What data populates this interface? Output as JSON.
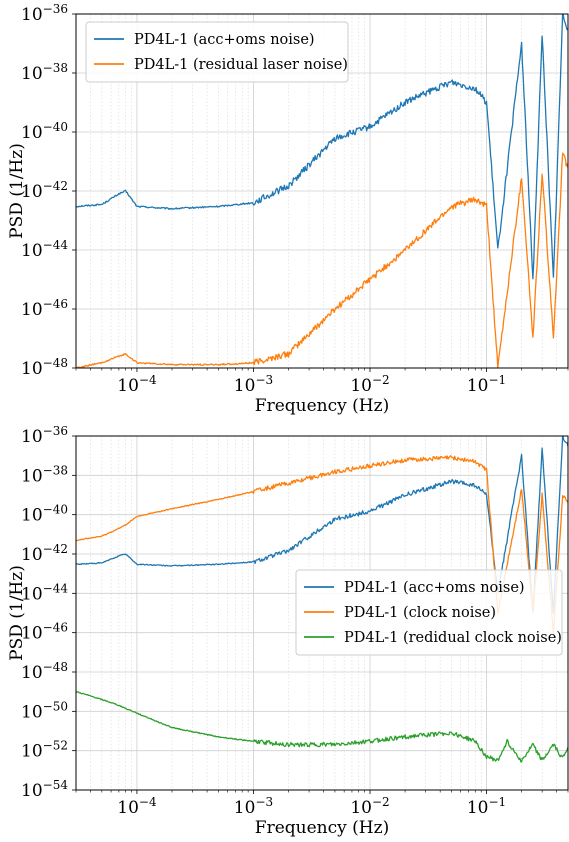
{
  "chart_data": [
    {
      "type": "line",
      "xscale": "log",
      "yscale": "log",
      "xlim": [
        3e-05,
        0.5
      ],
      "ylim": [
        1e-48,
        1e-36
      ],
      "xlabel": "Frequency (Hz)",
      "ylabel": "PSD (1/Hz)",
      "x_ticks": [
        "10^-4",
        "10^-3",
        "10^-2",
        "10^-1"
      ],
      "y_ticks": [
        "10^-48",
        "10^-46",
        "10^-44",
        "10^-42",
        "10^-40",
        "10^-38",
        "10^-36"
      ],
      "grid": true,
      "legend_position": "upper-left",
      "series": [
        {
          "name": "PD4L-1 (acc+oms noise)",
          "color": "#1f77b4",
          "x": [
            3e-05,
            5e-05,
            7e-05,
            8e-05,
            0.0001,
            0.0002,
            0.0005,
            0.001,
            0.002,
            0.005,
            0.01,
            0.02,
            0.05,
            0.08,
            0.1,
            0.125,
            0.2,
            0.25,
            0.3,
            0.375,
            0.45,
            0.5
          ],
          "y": [
            3e-43,
            3.5e-43,
            8e-43,
            1e-42,
            3e-43,
            2.5e-43,
            3e-43,
            4e-43,
            1.5e-42,
            6e-41,
            1.5e-40,
            1e-39,
            5e-39,
            3e-39,
            1e-39,
            1e-44,
            1e-37,
            1e-45,
            2e-37,
            1e-45,
            1e-36,
            3e-37
          ]
        },
        {
          "name": "PD4L-1 (residual laser noise)",
          "color": "#ff7f0e",
          "x": [
            3e-05,
            5e-05,
            7e-05,
            8e-05,
            0.0001,
            0.0002,
            0.0005,
            0.001,
            0.002,
            0.005,
            0.01,
            0.02,
            0.05,
            0.08,
            0.1,
            0.125,
            0.2,
            0.25,
            0.3,
            0.375,
            0.45,
            0.5
          ],
          "y": [
            1e-48,
            1.5e-48,
            2.5e-48,
            3e-48,
            1.5e-48,
            1.3e-48,
            1.3e-48,
            1.5e-48,
            3e-48,
            1e-46,
            1e-45,
            1e-44,
            3e-43,
            5e-43,
            3e-43,
            1e-48,
            3e-42,
            1e-47,
            4e-42,
            1e-47,
            2e-41,
            6e-42
          ]
        }
      ]
    },
    {
      "type": "line",
      "xscale": "log",
      "yscale": "log",
      "xlim": [
        3e-05,
        0.5
      ],
      "ylim": [
        1e-54,
        1e-36
      ],
      "xlabel": "Frequency (Hz)",
      "ylabel": "PSD (1/Hz)",
      "x_ticks": [
        "10^-4",
        "10^-3",
        "10^-2",
        "10^-1"
      ],
      "y_ticks": [
        "10^-54",
        "10^-52",
        "10^-50",
        "10^-48",
        "10^-46",
        "10^-44",
        "10^-42",
        "10^-40",
        "10^-38",
        "10^-36"
      ],
      "grid": true,
      "legend_position": "center-right",
      "series": [
        {
          "name": "PD4L-1 (acc+oms noise)",
          "color": "#1f77b4",
          "x": [
            3e-05,
            5e-05,
            7e-05,
            8e-05,
            0.0001,
            0.0002,
            0.0005,
            0.001,
            0.002,
            0.005,
            0.01,
            0.02,
            0.05,
            0.08,
            0.1,
            0.125,
            0.2,
            0.25,
            0.3,
            0.375,
            0.45,
            0.5
          ],
          "y": [
            3e-43,
            3.5e-43,
            8e-43,
            1e-42,
            3e-43,
            2.5e-43,
            3e-43,
            4e-43,
            1.5e-42,
            6e-41,
            1.5e-40,
            1e-39,
            5e-39,
            3e-39,
            1e-39,
            1e-44,
            1e-37,
            1e-45,
            2e-37,
            1e-45,
            1e-36,
            3e-37
          ]
        },
        {
          "name": "PD4L-1 (clock noise)",
          "color": "#ff7f0e",
          "x": [
            3e-05,
            5e-05,
            7e-05,
            8e-05,
            0.0001,
            0.0002,
            0.0005,
            0.001,
            0.002,
            0.005,
            0.01,
            0.02,
            0.05,
            0.08,
            0.1,
            0.125,
            0.2,
            0.25,
            0.3,
            0.375,
            0.45,
            0.5
          ],
          "y": [
            5e-42,
            8e-42,
            2e-41,
            3e-41,
            8e-41,
            2e-40,
            6e-40,
            1.5e-39,
            4e-39,
            1.5e-38,
            3e-38,
            6e-38,
            8e-38,
            5e-38,
            2e-38,
            1e-45,
            2e-39,
            1e-45,
            1e-39,
            1e-46,
            1e-39,
            4e-40
          ]
        },
        {
          "name": "PD4L-1 (redidual clock noise)",
          "color": "#2ca02c",
          "x": [
            3e-05,
            5e-05,
            7e-05,
            0.0001,
            0.0002,
            0.0005,
            0.001,
            0.002,
            0.005,
            0.01,
            0.02,
            0.05,
            0.08,
            0.1,
            0.125,
            0.15,
            0.2,
            0.25,
            0.3,
            0.375,
            0.45,
            0.5
          ],
          "y": [
            1e-49,
            4e-50,
            2e-50,
            8e-51,
            1.5e-51,
            5e-52,
            3e-52,
            2e-52,
            2e-52,
            3e-52,
            5e-52,
            8e-52,
            3e-52,
            5e-53,
            3e-53,
            3e-52,
            3e-53,
            2e-52,
            3e-53,
            2e-52,
            4e-53,
            1.5e-52
          ]
        }
      ]
    }
  ]
}
